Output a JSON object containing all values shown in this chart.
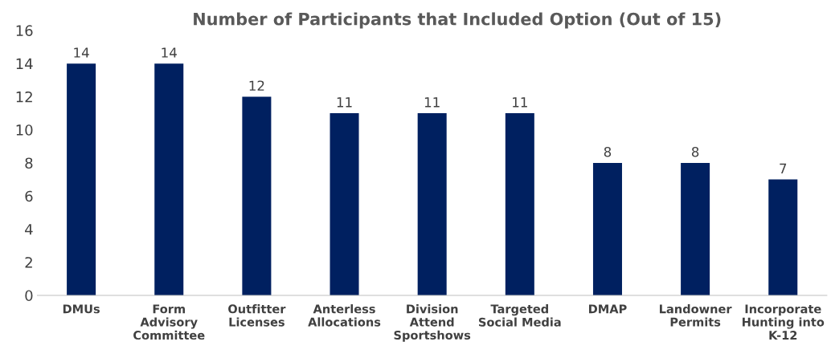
{
  "chart_data": {
    "type": "bar",
    "title": "Number of Participants that Included Option (Out of 15)",
    "categories": [
      "DMUs",
      "Form\nAdvisory\nCommittee",
      "Outfitter\nLicenses",
      "Anterless\nAllocations",
      "Division\nAttend\nSportshows",
      "Targeted\nSocial Media",
      "DMAP",
      "Landowner\nPermits",
      "Incorporate\nHunting into\nK-12"
    ],
    "values": [
      14,
      14,
      12,
      11,
      11,
      11,
      8,
      8,
      7
    ],
    "color": "#002060",
    "ylim": [
      0,
      16
    ],
    "yticks": [
      0,
      2,
      4,
      6,
      8,
      10,
      12,
      14,
      16
    ],
    "grid": false,
    "data_labels": true
  }
}
